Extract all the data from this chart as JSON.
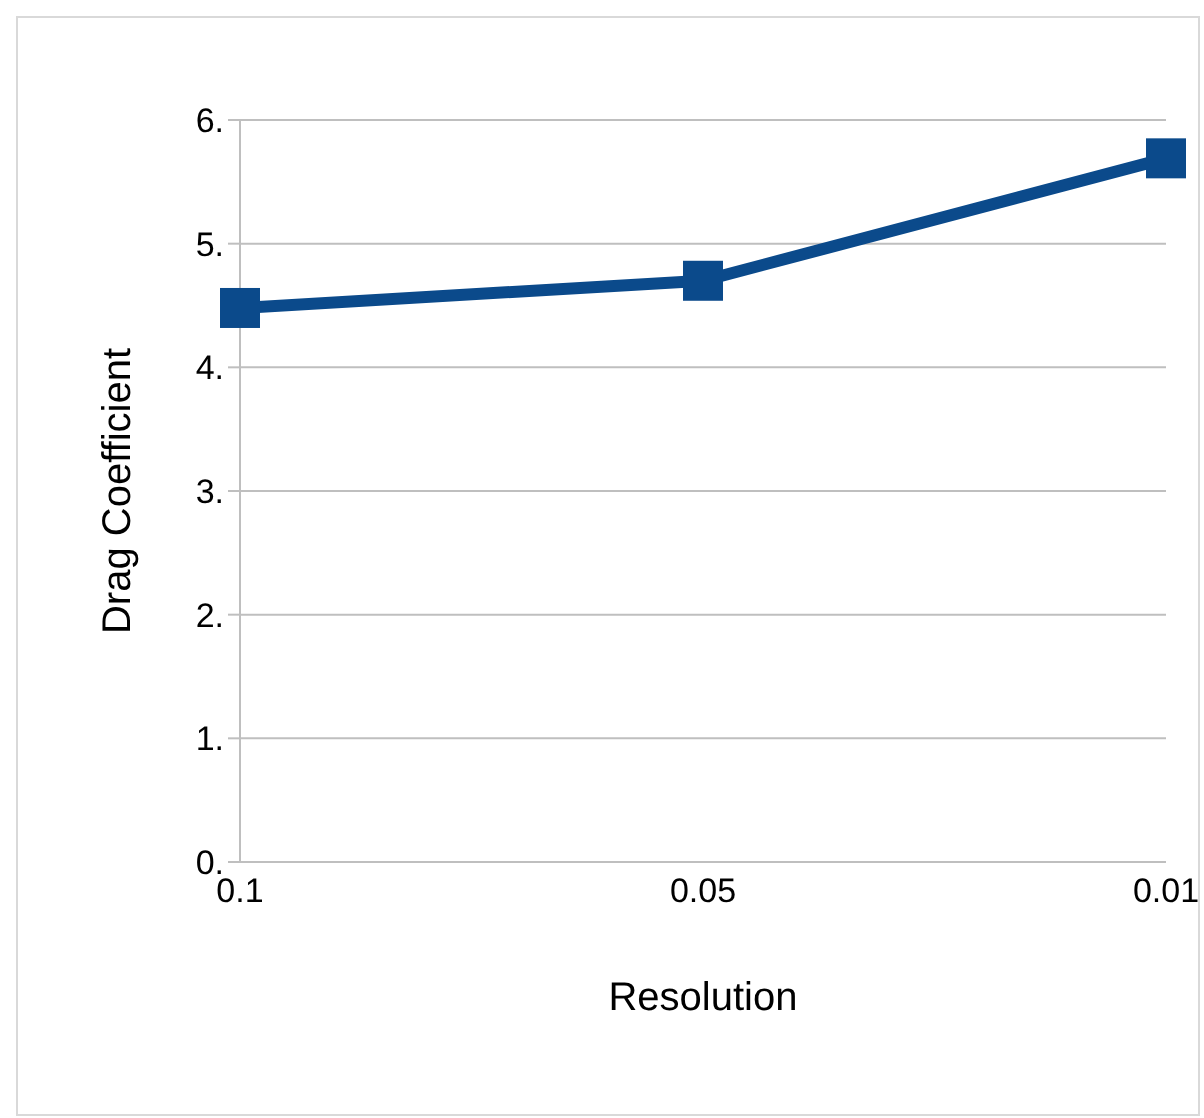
{
  "chart_data": {
    "type": "line",
    "xlabel": "Resolution",
    "ylabel": "Drag Coefficient",
    "categories": [
      "0.1",
      "0.05",
      "0.01"
    ],
    "series": [
      {
        "color": "#0b4a8b",
        "values": [
          4.48,
          4.7,
          5.69
        ]
      }
    ],
    "ylim": [
      0,
      6
    ],
    "yticks": [
      {
        "value": 0,
        "label": "0."
      },
      {
        "value": 1,
        "label": "1."
      },
      {
        "value": 2,
        "label": "2."
      },
      {
        "value": 3,
        "label": "3."
      },
      {
        "value": 4,
        "label": "4."
      },
      {
        "value": 5,
        "label": "5."
      },
      {
        "value": 6,
        "label": "6."
      }
    ],
    "grid": "y",
    "marker": "square",
    "line_style": "solid",
    "legend": false
  }
}
